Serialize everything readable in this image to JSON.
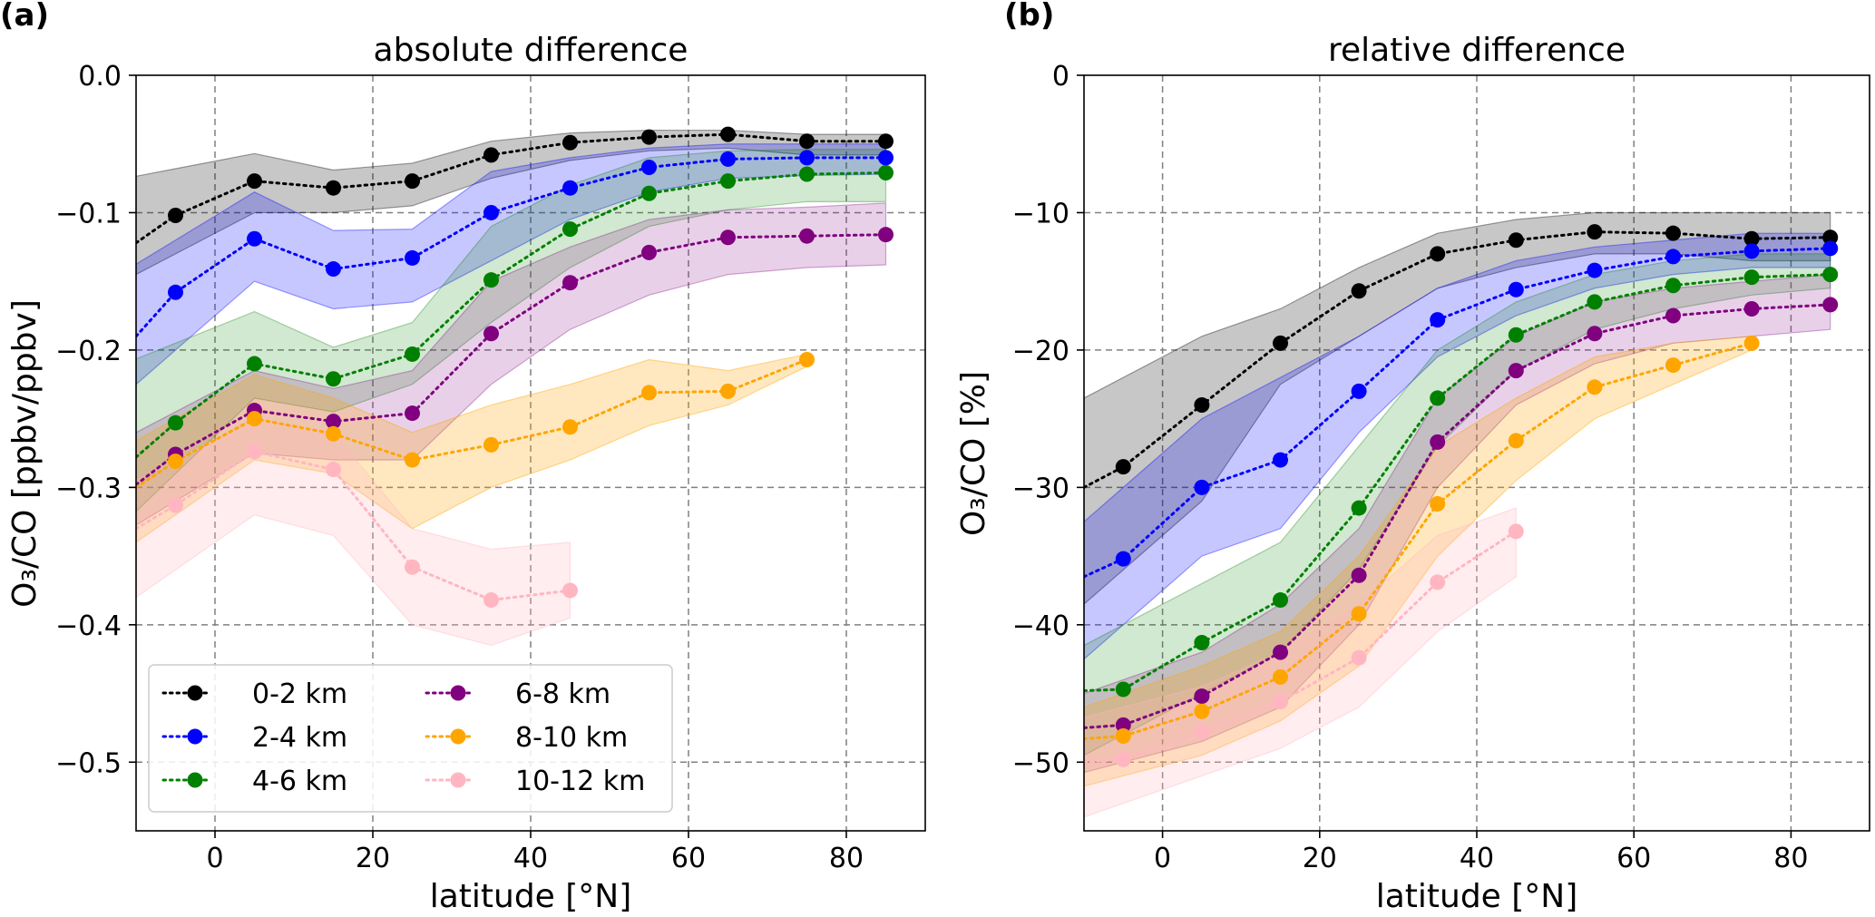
{
  "chart_data": [
    {
      "type": "line",
      "panel_label": "(a)",
      "title": "absolute difference",
      "xlabel": "latitude [°N]",
      "ylabel": "O₃/CO [ppbv/ppbv]",
      "xlim": [
        -10,
        90
      ],
      "ylim": [
        -0.55,
        0.0
      ],
      "xticks": [
        0,
        20,
        40,
        60,
        80
      ],
      "xtick_labels": [
        "0",
        "20",
        "40",
        "60",
        "80"
      ],
      "yticks": [
        0.0,
        -0.1,
        -0.2,
        -0.3,
        -0.4,
        -0.5
      ],
      "ytick_labels": [
        "0.0",
        "−0.1",
        "−0.2",
        "−0.3",
        "−0.4",
        "−0.5"
      ],
      "grid": true,
      "legend_placement": "lower-left",
      "legend_columns": 2,
      "series": [
        {
          "name": "0-2 km",
          "color": "#000000",
          "band_alpha": 0.22,
          "x": [
            -5,
            5,
            15,
            25,
            35,
            45,
            55,
            65,
            75,
            85
          ],
          "values": [
            -0.102,
            -0.077,
            -0.082,
            -0.077,
            -0.058,
            -0.049,
            -0.045,
            -0.043,
            -0.048,
            -0.048
          ],
          "lower": [
            -0.13,
            -0.1,
            -0.1,
            -0.095,
            -0.075,
            -0.062,
            -0.055,
            -0.053,
            -0.058,
            -0.058
          ],
          "upper": [
            -0.068,
            -0.057,
            -0.069,
            -0.064,
            -0.048,
            -0.042,
            -0.04,
            -0.04,
            -0.043,
            -0.043
          ],
          "x_line_start": -10,
          "value_line_start": -0.122
        },
        {
          "name": "2-4 km",
          "color": "#0000ff",
          "band_alpha": 0.22,
          "x": [
            -5,
            5,
            15,
            25,
            35,
            45,
            55,
            65,
            75,
            85
          ],
          "values": [
            -0.158,
            -0.119,
            -0.141,
            -0.133,
            -0.1,
            -0.082,
            -0.067,
            -0.061,
            -0.06,
            -0.06
          ],
          "lower": [
            -0.2,
            -0.15,
            -0.17,
            -0.165,
            -0.135,
            -0.105,
            -0.085,
            -0.075,
            -0.073,
            -0.072
          ],
          "upper": [
            -0.12,
            -0.085,
            -0.113,
            -0.112,
            -0.07,
            -0.06,
            -0.053,
            -0.05,
            -0.05,
            -0.05
          ],
          "x_line_start": -10,
          "value_line_start": -0.19
        },
        {
          "name": "4-6 km",
          "color": "#008000",
          "band_alpha": 0.18,
          "x": [
            -5,
            5,
            15,
            25,
            35,
            45,
            55,
            65,
            75,
            85
          ],
          "values": [
            -0.253,
            -0.21,
            -0.221,
            -0.203,
            -0.149,
            -0.112,
            -0.086,
            -0.077,
            -0.072,
            -0.071
          ],
          "lower": [
            -0.29,
            -0.235,
            -0.245,
            -0.225,
            -0.18,
            -0.14,
            -0.11,
            -0.098,
            -0.092,
            -0.092
          ],
          "upper": [
            -0.195,
            -0.172,
            -0.198,
            -0.18,
            -0.11,
            -0.08,
            -0.06,
            -0.055,
            -0.054,
            -0.054
          ],
          "x_line_start": -10,
          "value_line_start": -0.278
        },
        {
          "name": "6-8 km",
          "color": "#800080",
          "band_alpha": 0.18,
          "x": [
            -5,
            5,
            15,
            25,
            35,
            45,
            55,
            65,
            75,
            85
          ],
          "values": [
            -0.276,
            -0.244,
            -0.252,
            -0.246,
            -0.188,
            -0.151,
            -0.129,
            -0.118,
            -0.117,
            -0.116
          ],
          "lower": [
            -0.31,
            -0.275,
            -0.28,
            -0.28,
            -0.225,
            -0.185,
            -0.16,
            -0.145,
            -0.14,
            -0.138
          ],
          "upper": [
            -0.245,
            -0.215,
            -0.228,
            -0.215,
            -0.15,
            -0.125,
            -0.105,
            -0.098,
            -0.096,
            -0.093
          ],
          "x_line_start": -10,
          "value_line_start": -0.298
        },
        {
          "name": "8-10 km",
          "color": "#ffa500",
          "band_alpha": 0.25,
          "x": [
            -5,
            5,
            15,
            25,
            35,
            45,
            55,
            65,
            75
          ],
          "values": [
            -0.281,
            -0.25,
            -0.261,
            -0.28,
            -0.269,
            -0.256,
            -0.231,
            -0.23,
            -0.207
          ],
          "lower": [
            -0.32,
            -0.28,
            -0.29,
            -0.33,
            -0.3,
            -0.28,
            -0.255,
            -0.24,
            -0.212
          ],
          "upper": [
            -0.25,
            -0.218,
            -0.235,
            -0.26,
            -0.24,
            -0.225,
            -0.207,
            -0.215,
            -0.203
          ],
          "x_line_start": -10,
          "value_line_start": -0.3
        },
        {
          "name": "10-12 km",
          "color": "#ffb6c1",
          "band_alpha": 0.25,
          "x": [
            -5,
            5,
            15,
            25,
            35,
            45
          ],
          "values": [
            -0.313,
            -0.274,
            -0.287,
            -0.358,
            -0.382,
            -0.375
          ],
          "lower": [
            -0.36,
            -0.32,
            -0.335,
            -0.4,
            -0.415,
            -0.395
          ],
          "upper": [
            -0.28,
            -0.25,
            -0.26,
            -0.33,
            -0.345,
            -0.34
          ],
          "x_line_start": -10,
          "value_line_start": -0.33
        }
      ]
    },
    {
      "type": "line",
      "panel_label": "(b)",
      "title": "relative difference",
      "xlabel": "latitude [°N]",
      "ylabel": "O₃/CO [%]",
      "xlim": [
        -10,
        90
      ],
      "ylim": [
        -55,
        0
      ],
      "xticks": [
        0,
        20,
        40,
        60,
        80
      ],
      "xtick_labels": [
        "0",
        "20",
        "40",
        "60",
        "80"
      ],
      "yticks": [
        0,
        -10,
        -20,
        -30,
        -40,
        -50
      ],
      "ytick_labels": [
        "0",
        "−10",
        "−20",
        "−30",
        "−40",
        "−50"
      ],
      "grid": true,
      "series": [
        {
          "name": "0-2 km",
          "color": "#000000",
          "band_alpha": 0.22,
          "x": [
            -5,
            5,
            15,
            25,
            35,
            45,
            55,
            65,
            75,
            85
          ],
          "values": [
            -28.5,
            -24.0,
            -19.5,
            -15.7,
            -13.0,
            -12.0,
            -11.4,
            -11.5,
            -11.9,
            -11.8
          ],
          "lower": [
            -36.0,
            -31.0,
            -22.5,
            -19.0,
            -15.5,
            -14.0,
            -13.0,
            -13.0,
            -13.5,
            -13.5
          ],
          "upper": [
            -22.0,
            -19.0,
            -17.0,
            -14.0,
            -11.5,
            -10.5,
            -10.0,
            -10.0,
            -10.0,
            -10.0
          ],
          "x_line_start": -10,
          "value_line_start": -30.0
        },
        {
          "name": "2-4 km",
          "color": "#0000ff",
          "band_alpha": 0.22,
          "x": [
            -5,
            5,
            15,
            25,
            35,
            45,
            55,
            65,
            75,
            85
          ],
          "values": [
            -35.2,
            -30.0,
            -28.0,
            -23.0,
            -17.8,
            -15.6,
            -14.2,
            -13.2,
            -12.8,
            -12.6
          ],
          "lower": [
            -40.0,
            -35.0,
            -33.0,
            -26.0,
            -20.5,
            -17.5,
            -15.5,
            -14.5,
            -14.0,
            -14.0
          ],
          "upper": [
            -30.0,
            -25.0,
            -22.0,
            -19.0,
            -15.5,
            -13.5,
            -12.5,
            -12.0,
            -11.5,
            -11.5
          ],
          "x_line_start": -10,
          "value_line_start": -36.5
        },
        {
          "name": "4-6 km",
          "color": "#008000",
          "band_alpha": 0.18,
          "x": [
            -5,
            5,
            15,
            25,
            35,
            45,
            55,
            65,
            75,
            85
          ],
          "values": [
            -44.7,
            -41.3,
            -38.2,
            -31.5,
            -23.5,
            -18.9,
            -16.5,
            -15.3,
            -14.7,
            -14.5
          ],
          "lower": [
            -48.0,
            -45.0,
            -42.0,
            -36.0,
            -27.0,
            -21.5,
            -18.5,
            -17.0,
            -16.0,
            -15.5
          ],
          "upper": [
            -40.0,
            -37.0,
            -34.0,
            -27.0,
            -20.0,
            -16.5,
            -14.5,
            -13.5,
            -13.0,
            -13.0
          ],
          "x_line_start": -10,
          "value_line_start": -44.8
        },
        {
          "name": "6-8 km",
          "color": "#800080",
          "band_alpha": 0.18,
          "x": [
            -5,
            5,
            15,
            25,
            35,
            45,
            55,
            65,
            75,
            85
          ],
          "values": [
            -47.3,
            -45.2,
            -42.0,
            -36.4,
            -26.7,
            -21.5,
            -18.8,
            -17.5,
            -17.0,
            -16.7
          ],
          "lower": [
            -50.0,
            -48.5,
            -46.0,
            -40.0,
            -30.0,
            -24.0,
            -21.0,
            -19.5,
            -19.0,
            -18.5
          ],
          "upper": [
            -44.0,
            -42.0,
            -38.5,
            -33.0,
            -23.5,
            -19.0,
            -16.5,
            -15.5,
            -15.0,
            -14.5
          ],
          "x_line_start": -10,
          "value_line_start": -47.5
        },
        {
          "name": "8-10 km",
          "color": "#ffa500",
          "band_alpha": 0.25,
          "x": [
            -5,
            5,
            15,
            25,
            35,
            45,
            55,
            65,
            75
          ],
          "values": [
            -48.1,
            -46.3,
            -43.8,
            -39.2,
            -31.2,
            -26.6,
            -22.7,
            -21.1,
            -19.5
          ],
          "lower": [
            -51.0,
            -49.5,
            -47.0,
            -43.0,
            -35.0,
            -29.5,
            -25.0,
            -22.5,
            -20.0
          ],
          "upper": [
            -45.0,
            -43.0,
            -40.5,
            -35.0,
            -27.0,
            -23.5,
            -20.5,
            -19.5,
            -19.0
          ],
          "x_line_start": -10,
          "value_line_start": -48.3
        },
        {
          "name": "10-12 km",
          "color": "#ffb6c1",
          "band_alpha": 0.25,
          "x": [
            -5,
            5,
            15,
            25,
            35,
            45
          ],
          "values": [
            -49.8,
            -47.8,
            -45.6,
            -42.4,
            -36.9,
            -33.2
          ],
          "lower": [
            -53.0,
            -51.0,
            -49.0,
            -46.0,
            -40.5,
            -36.5
          ],
          "upper": [
            -46.0,
            -44.5,
            -42.0,
            -38.5,
            -33.5,
            -31.5
          ],
          "x_line_start": -10,
          "value_line_start": -50.0
        }
      ]
    }
  ]
}
